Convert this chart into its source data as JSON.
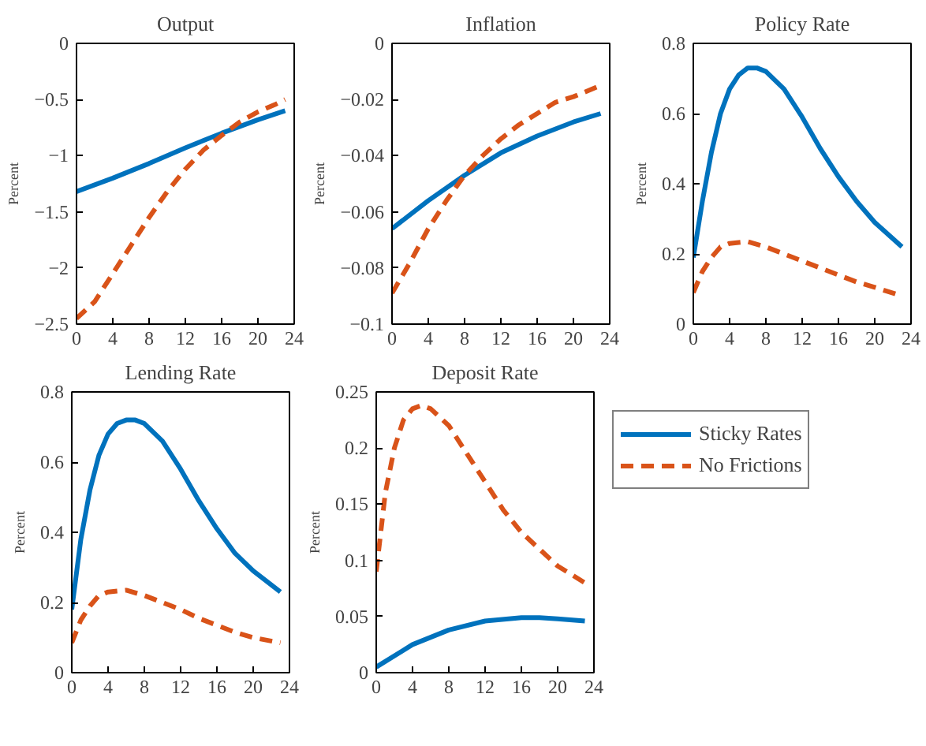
{
  "chart_data": [
    {
      "type": "line",
      "title": "Output",
      "ylabel": "Percent",
      "xlim": [
        0,
        24
      ],
      "xticks": [
        0,
        4,
        8,
        12,
        16,
        20,
        24
      ],
      "ylim": [
        -2.5,
        0
      ],
      "yticks": [
        -2.5,
        -2,
        -1.5,
        -1,
        -0.5,
        0
      ],
      "grid": false,
      "legend": false,
      "series": [
        {
          "color": "#0072bd",
          "line_style": "solid",
          "x": [
            0,
            4,
            8,
            12,
            16,
            20,
            23
          ],
          "values": [
            -1.32,
            -1.2,
            -1.07,
            -0.93,
            -0.8,
            -0.68,
            -0.6
          ]
        },
        {
          "color": "#d95319",
          "line_style": "dashed",
          "x": [
            0,
            2,
            4,
            6,
            8,
            10,
            12,
            14,
            16,
            18,
            20,
            22,
            23
          ],
          "values": [
            -2.45,
            -2.3,
            -2.05,
            -1.8,
            -1.55,
            -1.32,
            -1.12,
            -0.95,
            -0.82,
            -0.7,
            -0.61,
            -0.54,
            -0.5
          ]
        }
      ]
    },
    {
      "type": "line",
      "title": "Inflation",
      "ylabel": "Percent",
      "xlim": [
        0,
        24
      ],
      "xticks": [
        0,
        4,
        8,
        12,
        16,
        20,
        24
      ],
      "ylim": [
        -0.1,
        0
      ],
      "yticks": [
        -0.1,
        -0.08,
        -0.06,
        -0.04,
        -0.02,
        0
      ],
      "grid": false,
      "legend": false,
      "series": [
        {
          "color": "#0072bd",
          "line_style": "solid",
          "x": [
            0,
            4,
            8,
            12,
            16,
            20,
            23
          ],
          "values": [
            -0.066,
            -0.056,
            -0.047,
            -0.039,
            -0.033,
            -0.028,
            -0.025
          ]
        },
        {
          "color": "#d95319",
          "line_style": "dashed",
          "x": [
            0,
            2,
            4,
            6,
            8,
            10,
            12,
            14,
            16,
            18,
            20,
            23
          ],
          "values": [
            -0.089,
            -0.078,
            -0.066,
            -0.056,
            -0.047,
            -0.04,
            -0.034,
            -0.029,
            -0.025,
            -0.021,
            -0.019,
            -0.015
          ]
        }
      ]
    },
    {
      "type": "line",
      "title": "Policy Rate",
      "ylabel": "Percent",
      "xlim": [
        0,
        24
      ],
      "xticks": [
        0,
        4,
        8,
        12,
        16,
        20,
        24
      ],
      "ylim": [
        0,
        0.8
      ],
      "yticks": [
        0,
        0.2,
        0.4,
        0.6,
        0.8
      ],
      "grid": false,
      "legend": false,
      "series": [
        {
          "color": "#0072bd",
          "line_style": "solid",
          "x": [
            0,
            1,
            2,
            3,
            4,
            5,
            6,
            7,
            8,
            10,
            12,
            14,
            16,
            18,
            20,
            23
          ],
          "values": [
            0.19,
            0.35,
            0.49,
            0.6,
            0.67,
            0.71,
            0.73,
            0.73,
            0.72,
            0.67,
            0.59,
            0.5,
            0.42,
            0.35,
            0.29,
            0.22
          ]
        },
        {
          "color": "#d95319",
          "line_style": "dashed",
          "x": [
            0,
            1,
            2,
            3,
            4,
            6,
            8,
            10,
            12,
            14,
            16,
            18,
            20,
            23
          ],
          "values": [
            0.09,
            0.15,
            0.19,
            0.22,
            0.23,
            0.235,
            0.22,
            0.2,
            0.18,
            0.16,
            0.14,
            0.12,
            0.105,
            0.08
          ]
        }
      ]
    },
    {
      "type": "line",
      "title": "Lending Rate",
      "ylabel": "Percent",
      "xlim": [
        0,
        24
      ],
      "xticks": [
        0,
        4,
        8,
        12,
        16,
        20,
        24
      ],
      "ylim": [
        0,
        0.8
      ],
      "yticks": [
        0,
        0.2,
        0.4,
        0.6,
        0.8
      ],
      "grid": false,
      "legend": false,
      "series": [
        {
          "color": "#0072bd",
          "line_style": "solid",
          "x": [
            0,
            1,
            2,
            3,
            4,
            5,
            6,
            7,
            8,
            10,
            12,
            14,
            16,
            18,
            20,
            23
          ],
          "values": [
            0.18,
            0.38,
            0.52,
            0.62,
            0.68,
            0.71,
            0.72,
            0.72,
            0.71,
            0.66,
            0.58,
            0.49,
            0.41,
            0.34,
            0.29,
            0.23
          ]
        },
        {
          "color": "#d95319",
          "line_style": "dashed",
          "x": [
            0,
            1,
            2,
            3,
            4,
            6,
            8,
            10,
            12,
            14,
            16,
            18,
            20,
            23
          ],
          "values": [
            0.085,
            0.15,
            0.19,
            0.22,
            0.23,
            0.235,
            0.22,
            0.2,
            0.18,
            0.155,
            0.135,
            0.115,
            0.1,
            0.085
          ]
        }
      ]
    },
    {
      "type": "line",
      "title": "Deposit Rate",
      "ylabel": "Percent",
      "xlim": [
        0,
        24
      ],
      "xticks": [
        0,
        4,
        8,
        12,
        16,
        20,
        24
      ],
      "ylim": [
        0,
        0.25
      ],
      "yticks": [
        0,
        0.05,
        0.1,
        0.15,
        0.2,
        0.25
      ],
      "grid": false,
      "legend": "right",
      "series": [
        {
          "name": "Sticky Rates",
          "color": "#0072bd",
          "line_style": "solid",
          "x": [
            0,
            4,
            8,
            12,
            16,
            18,
            20,
            23
          ],
          "values": [
            0.005,
            0.025,
            0.038,
            0.046,
            0.049,
            0.049,
            0.048,
            0.046
          ]
        },
        {
          "name": "No Frictions",
          "color": "#d95319",
          "line_style": "dashed",
          "x": [
            0,
            1,
            2,
            3,
            4,
            5,
            6,
            8,
            10,
            12,
            14,
            16,
            18,
            20,
            23
          ],
          "values": [
            0.09,
            0.16,
            0.2,
            0.225,
            0.235,
            0.238,
            0.235,
            0.22,
            0.195,
            0.17,
            0.145,
            0.125,
            0.11,
            0.095,
            0.08
          ]
        }
      ]
    }
  ]
}
